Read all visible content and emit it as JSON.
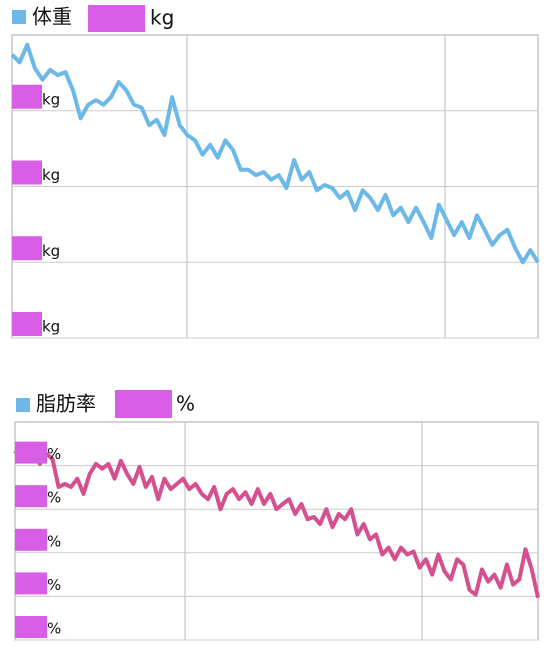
{
  "chart_data": [
    {
      "type": "line",
      "title": "体重",
      "unit_label": "kg",
      "color": "#6cb8e8",
      "ylim": [
        0,
        4
      ],
      "yticks": [
        {
          "value": 0,
          "label": "kg"
        },
        {
          "value": 1,
          "label": "kg"
        },
        {
          "value": 2,
          "label": "kg"
        },
        {
          "value": 3,
          "label": "kg"
        }
      ],
      "grid": true,
      "values": [
        3.74,
        3.64,
        3.87,
        3.56,
        3.41,
        3.54,
        3.47,
        3.51,
        3.27,
        2.9,
        3.08,
        3.14,
        3.08,
        3.18,
        3.38,
        3.27,
        3.08,
        3.04,
        2.81,
        2.88,
        2.68,
        3.18,
        2.81,
        2.68,
        2.61,
        2.42,
        2.55,
        2.38,
        2.61,
        2.48,
        2.22,
        2.22,
        2.15,
        2.19,
        2.09,
        2.15,
        1.98,
        2.35,
        2.09,
        2.19,
        1.95,
        2.02,
        1.98,
        1.85,
        1.93,
        1.69,
        1.95,
        1.85,
        1.69,
        1.89,
        1.62,
        1.72,
        1.53,
        1.72,
        1.53,
        1.32,
        1.76,
        1.56,
        1.36,
        1.53,
        1.32,
        1.62,
        1.43,
        1.23,
        1.36,
        1.43,
        1.19,
        1.0,
        1.16,
        1.0
      ]
    },
    {
      "type": "line",
      "title": "脂肪率",
      "unit_label": "%",
      "color": "#d4508f",
      "ylim": [
        0,
        5
      ],
      "yticks": [
        {
          "value": 0,
          "label": "%"
        },
        {
          "value": 1,
          "label": "%"
        },
        {
          "value": 2,
          "label": "%"
        },
        {
          "value": 3,
          "label": "%"
        },
        {
          "value": 4,
          "label": "%"
        }
      ],
      "grid": true,
      "values": [
        4.27,
        4.43,
        4.11,
        4.27,
        4.04,
        4.27,
        4.16,
        3.51,
        3.58,
        3.51,
        3.7,
        3.35,
        3.81,
        4.04,
        3.93,
        4.04,
        3.7,
        4.11,
        3.81,
        3.58,
        3.97,
        3.51,
        3.74,
        3.23,
        3.7,
        3.46,
        3.58,
        3.7,
        3.46,
        3.58,
        3.35,
        3.23,
        3.51,
        3.0,
        3.35,
        3.46,
        3.23,
        3.39,
        3.12,
        3.46,
        3.12,
        3.35,
        3.0,
        3.12,
        3.23,
        2.89,
        3.12,
        2.77,
        2.82,
        2.66,
        3.0,
        2.59,
        2.89,
        2.77,
        3.0,
        2.42,
        2.66,
        2.31,
        2.42,
        1.96,
        2.12,
        1.85,
        2.12,
        1.96,
        2.03,
        1.66,
        1.85,
        1.5,
        1.96,
        1.57,
        1.39,
        1.85,
        1.73,
        1.15,
        1.04,
        1.62,
        1.34,
        1.5,
        1.2,
        1.73,
        1.27,
        1.39,
        2.08,
        1.62,
        0.97
      ]
    }
  ]
}
